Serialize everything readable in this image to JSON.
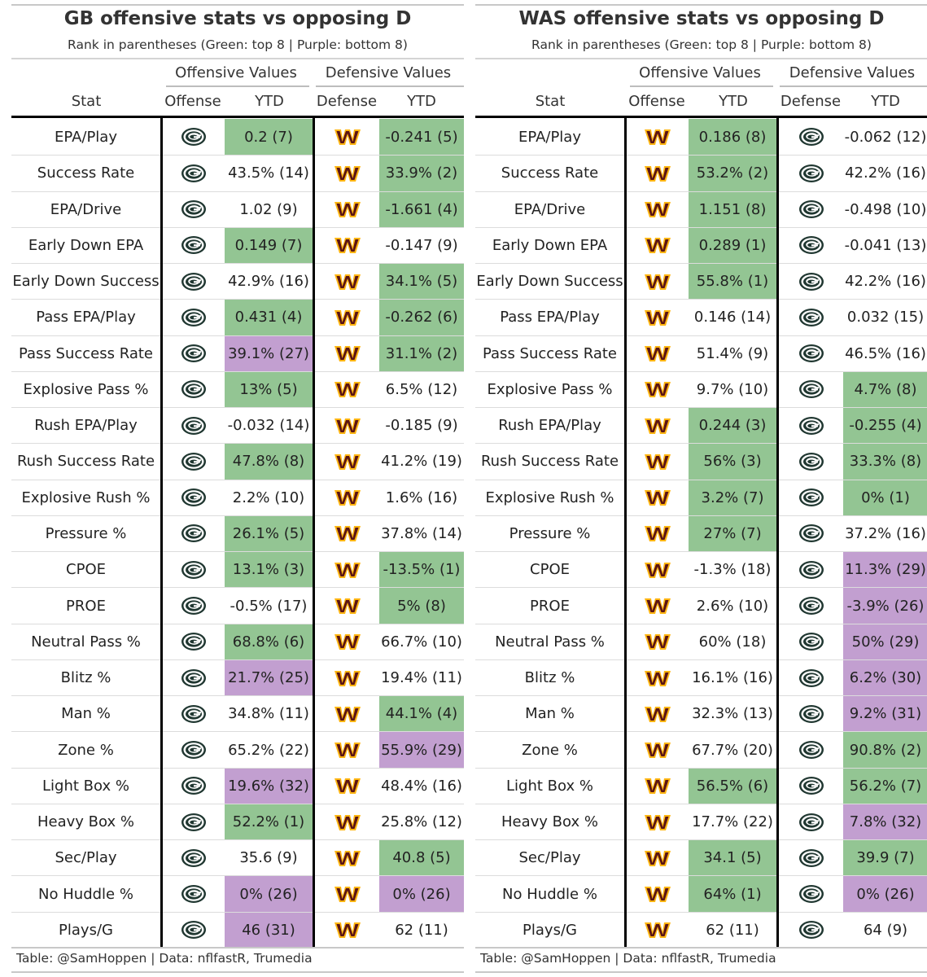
{
  "tables": [
    {
      "title": "GB offensive stats vs opposing D",
      "subtitle": "Rank in parentheses (Green: top 8 | Purple: bottom 8)",
      "offense_group": "Offensive Values",
      "defense_group": "Defensive Values",
      "columns": {
        "stat": "Stat",
        "offense": "Offense",
        "ytd1": "YTD",
        "defense": "Defense",
        "ytd2": "YTD"
      },
      "offense_team": "packers-logo-icon",
      "defense_team": "commanders-logo-icon",
      "footer": "Table: @SamHoppen | Data: nflfastR, Trumedia",
      "rows": [
        {
          "stat": "EPA/Play",
          "off": "0.2 (7)",
          "off_color": "green",
          "def": "-0.241 (5)",
          "def_color": "green"
        },
        {
          "stat": "Success Rate",
          "off": "43.5% (14)",
          "off_color": "",
          "def": "33.9% (2)",
          "def_color": "green"
        },
        {
          "stat": "EPA/Drive",
          "off": "1.02 (9)",
          "off_color": "",
          "def": "-1.661 (4)",
          "def_color": "green"
        },
        {
          "stat": "Early Down EPA",
          "off": "0.149 (7)",
          "off_color": "green",
          "def": "-0.147 (9)",
          "def_color": ""
        },
        {
          "stat": "Early Down Success",
          "off": "42.9% (16)",
          "off_color": "",
          "def": "34.1% (5)",
          "def_color": "green"
        },
        {
          "stat": "Pass EPA/Play",
          "off": "0.431 (4)",
          "off_color": "green",
          "def": "-0.262 (6)",
          "def_color": "green"
        },
        {
          "stat": "Pass Success Rate",
          "off": "39.1% (27)",
          "off_color": "purple",
          "def": "31.1% (2)",
          "def_color": "green"
        },
        {
          "stat": "Explosive Pass %",
          "off": "13% (5)",
          "off_color": "green",
          "def": "6.5% (12)",
          "def_color": ""
        },
        {
          "stat": "Rush EPA/Play",
          "off": "-0.032 (14)",
          "off_color": "",
          "def": "-0.185 (9)",
          "def_color": ""
        },
        {
          "stat": "Rush Success Rate",
          "off": "47.8% (8)",
          "off_color": "green",
          "def": "41.2% (19)",
          "def_color": ""
        },
        {
          "stat": "Explosive Rush %",
          "off": "2.2% (10)",
          "off_color": "",
          "def": "1.6% (16)",
          "def_color": ""
        },
        {
          "stat": "Pressure %",
          "off": "26.1% (5)",
          "off_color": "green",
          "def": "37.8% (14)",
          "def_color": ""
        },
        {
          "stat": "CPOE",
          "off": "13.1% (3)",
          "off_color": "green",
          "def": "-13.5% (1)",
          "def_color": "green"
        },
        {
          "stat": "PROE",
          "off": "-0.5% (17)",
          "off_color": "",
          "def": "5% (8)",
          "def_color": "green"
        },
        {
          "stat": "Neutral Pass %",
          "off": "68.8% (6)",
          "off_color": "green",
          "def": "66.7% (10)",
          "def_color": ""
        },
        {
          "stat": "Blitz %",
          "off": "21.7% (25)",
          "off_color": "purple",
          "def": "19.4% (11)",
          "def_color": ""
        },
        {
          "stat": "Man %",
          "off": "34.8% (11)",
          "off_color": "",
          "def": "44.1% (4)",
          "def_color": "green"
        },
        {
          "stat": "Zone %",
          "off": "65.2% (22)",
          "off_color": "",
          "def": "55.9% (29)",
          "def_color": "purple"
        },
        {
          "stat": "Light Box %",
          "off": "19.6% (32)",
          "off_color": "purple",
          "def": "48.4% (16)",
          "def_color": ""
        },
        {
          "stat": "Heavy Box %",
          "off": "52.2% (1)",
          "off_color": "green",
          "def": "25.8% (12)",
          "def_color": ""
        },
        {
          "stat": "Sec/Play",
          "off": "35.6 (9)",
          "off_color": "",
          "def": "40.8 (5)",
          "def_color": "green"
        },
        {
          "stat": "No Huddle %",
          "off": "0% (26)",
          "off_color": "purple",
          "def": "0% (26)",
          "def_color": "purple"
        },
        {
          "stat": "Plays/G",
          "off": "46 (31)",
          "off_color": "purple",
          "def": "62 (11)",
          "def_color": ""
        }
      ]
    },
    {
      "title": "WAS offensive stats vs opposing D",
      "subtitle": "Rank in parentheses (Green: top 8 | Purple: bottom 8)",
      "offense_group": "Offensive Values",
      "defense_group": "Defensive Values",
      "columns": {
        "stat": "Stat",
        "offense": "Offense",
        "ytd1": "YTD",
        "defense": "Defense",
        "ytd2": "YTD"
      },
      "offense_team": "commanders-logo-icon",
      "defense_team": "packers-logo-icon",
      "footer": "Table: @SamHoppen | Data: nflfastR, Trumedia",
      "rows": [
        {
          "stat": "EPA/Play",
          "off": "0.186 (8)",
          "off_color": "green",
          "def": "-0.062 (12)",
          "def_color": ""
        },
        {
          "stat": "Success Rate",
          "off": "53.2% (2)",
          "off_color": "green",
          "def": "42.2% (16)",
          "def_color": ""
        },
        {
          "stat": "EPA/Drive",
          "off": "1.151 (8)",
          "off_color": "green",
          "def": "-0.498 (10)",
          "def_color": ""
        },
        {
          "stat": "Early Down EPA",
          "off": "0.289 (1)",
          "off_color": "green",
          "def": "-0.041 (13)",
          "def_color": ""
        },
        {
          "stat": "Early Down Success",
          "off": "55.8% (1)",
          "off_color": "green",
          "def": "42.2% (16)",
          "def_color": ""
        },
        {
          "stat": "Pass EPA/Play",
          "off": "0.146 (14)",
          "off_color": "",
          "def": "0.032 (15)",
          "def_color": ""
        },
        {
          "stat": "Pass Success Rate",
          "off": "51.4% (9)",
          "off_color": "",
          "def": "46.5% (16)",
          "def_color": ""
        },
        {
          "stat": "Explosive Pass %",
          "off": "9.7% (10)",
          "off_color": "",
          "def": "4.7% (8)",
          "def_color": "green"
        },
        {
          "stat": "Rush EPA/Play",
          "off": "0.244 (3)",
          "off_color": "green",
          "def": "-0.255 (4)",
          "def_color": "green"
        },
        {
          "stat": "Rush Success Rate",
          "off": "56% (3)",
          "off_color": "green",
          "def": "33.3% (8)",
          "def_color": "green"
        },
        {
          "stat": "Explosive Rush %",
          "off": "3.2% (7)",
          "off_color": "green",
          "def": "0% (1)",
          "def_color": "green"
        },
        {
          "stat": "Pressure %",
          "off": "27% (7)",
          "off_color": "green",
          "def": "37.2% (16)",
          "def_color": ""
        },
        {
          "stat": "CPOE",
          "off": "-1.3% (18)",
          "off_color": "",
          "def": "11.3% (29)",
          "def_color": "purple"
        },
        {
          "stat": "PROE",
          "off": "2.6% (10)",
          "off_color": "",
          "def": "-3.9% (26)",
          "def_color": "purple"
        },
        {
          "stat": "Neutral Pass %",
          "off": "60% (18)",
          "off_color": "",
          "def": "50% (29)",
          "def_color": "purple"
        },
        {
          "stat": "Blitz %",
          "off": "16.1% (16)",
          "off_color": "",
          "def": "6.2% (30)",
          "def_color": "purple"
        },
        {
          "stat": "Man %",
          "off": "32.3% (13)",
          "off_color": "",
          "def": "9.2% (31)",
          "def_color": "purple"
        },
        {
          "stat": "Zone %",
          "off": "67.7% (20)",
          "off_color": "",
          "def": "90.8% (2)",
          "def_color": "green"
        },
        {
          "stat": "Light Box %",
          "off": "56.5% (6)",
          "off_color": "green",
          "def": "56.2% (7)",
          "def_color": "green"
        },
        {
          "stat": "Heavy Box %",
          "off": "17.7% (22)",
          "off_color": "",
          "def": "7.8% (32)",
          "def_color": "purple"
        },
        {
          "stat": "Sec/Play",
          "off": "34.1 (5)",
          "off_color": "green",
          "def": "39.9 (7)",
          "def_color": "green"
        },
        {
          "stat": "No Huddle %",
          "off": "64% (1)",
          "off_color": "green",
          "def": "0% (26)",
          "def_color": "purple"
        },
        {
          "stat": "Plays/G",
          "off": "62 (11)",
          "off_color": "",
          "def": "64 (9)",
          "def_color": ""
        }
      ]
    }
  ],
  "colors": {
    "green": "#93c593",
    "purple": "#c29fd0",
    "packers_green": "#203731",
    "packers_gold": "#ffb612",
    "commanders_burgundy": "#5a1414",
    "commanders_gold": "#ffb612"
  }
}
